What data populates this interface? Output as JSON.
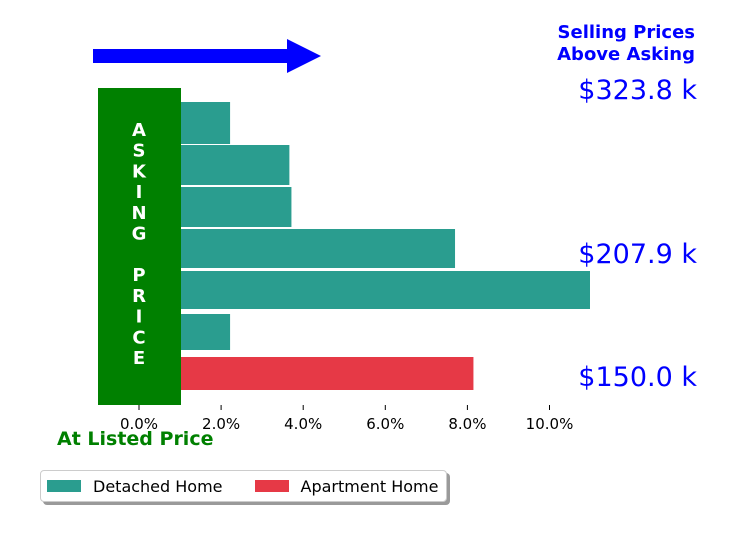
{
  "chart_data": {
    "type": "bar",
    "orientation": "horizontal",
    "annotation_top": "Selling Prices\nAbove Asking",
    "annotation_left": "ASKING PRICE",
    "annotation_bottom": "At Listed Price",
    "price_labels": [
      "$323.8 k",
      "$207.9 k",
      "$150.0 k"
    ],
    "x_ticks": [
      "0.0%",
      "2.0%",
      "4.0%",
      "6.0%",
      "8.0%",
      "10.0%"
    ],
    "xlim": [
      -1.0,
      10.5
    ],
    "series": [
      {
        "name": "Detached Home",
        "color": "#2a9d8f",
        "values": [
          1.2,
          2.65,
          2.7,
          6.7,
          10.0,
          1.2
        ]
      },
      {
        "name": "Apartment Home",
        "color": "#e63946",
        "values": [
          7.15
        ]
      }
    ],
    "colors": {
      "annotation_blue": "#0000ff",
      "asking_green": "#008000"
    },
    "legend": "bottom-left",
    "grid": false
  }
}
